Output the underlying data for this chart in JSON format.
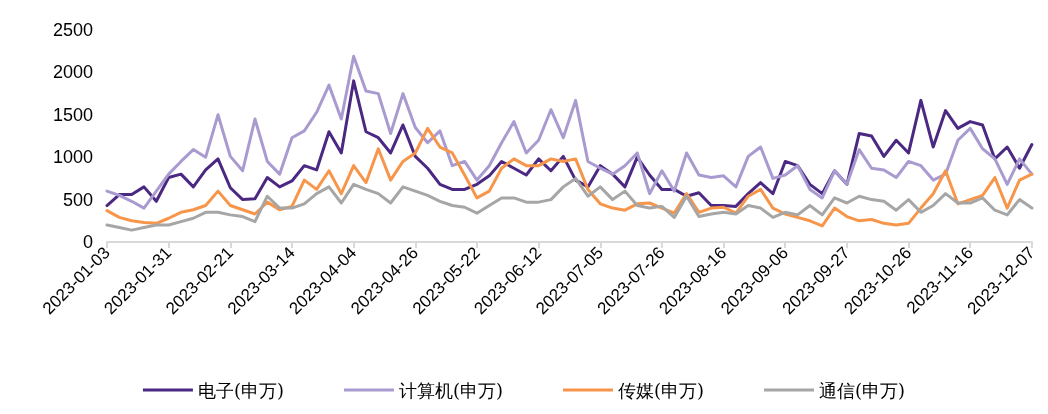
{
  "chart_data": {
    "type": "line",
    "categories": [
      "2023-01-03",
      null,
      null,
      null,
      null,
      "2023-01-31",
      null,
      null,
      null,
      null,
      "2023-02-21",
      null,
      null,
      null,
      null,
      "2023-03-14",
      null,
      null,
      null,
      null,
      "2023-04-04",
      null,
      null,
      null,
      null,
      "2023-04-26",
      null,
      null,
      null,
      null,
      "2023-05-22",
      null,
      null,
      null,
      null,
      "2023-06-12",
      null,
      null,
      null,
      null,
      "2023-07-05",
      null,
      null,
      null,
      null,
      "2023-07-26",
      null,
      null,
      null,
      null,
      "2023-08-16",
      null,
      null,
      null,
      null,
      "2023-09-06",
      null,
      null,
      null,
      null,
      "2023-09-27",
      null,
      null,
      null,
      null,
      "2023-10-26",
      null,
      null,
      null,
      null,
      "2023-11-16",
      null,
      null,
      null,
      null,
      "2023-12-07"
    ],
    "series": [
      {
        "name": "电子(申万)",
        "color": "#4b2882",
        "values": [
          430,
          560,
          560,
          650,
          480,
          760,
          800,
          650,
          850,
          980,
          640,
          500,
          510,
          760,
          650,
          720,
          900,
          850,
          1300,
          1050,
          1900,
          1300,
          1230,
          1050,
          1380,
          1010,
          870,
          680,
          620,
          620,
          680,
          780,
          950,
          870,
          790,
          980,
          840,
          1010,
          730,
          650,
          900,
          800,
          650,
          1000,
          790,
          620,
          620,
          540,
          580,
          430,
          430,
          420,
          570,
          700,
          570,
          950,
          900,
          680,
          570,
          840,
          680,
          1280,
          1250,
          1010,
          1200,
          1050,
          1670,
          1120,
          1550,
          1340,
          1420,
          1380,
          980,
          1120,
          870,
          1150
        ]
      },
      {
        "name": "计算机(申万)",
        "color": "#a99bd0",
        "values": [
          600,
          550,
          480,
          400,
          600,
          800,
          950,
          1090,
          1000,
          1500,
          1010,
          840,
          1450,
          950,
          800,
          1230,
          1310,
          1530,
          1850,
          1450,
          2190,
          1780,
          1750,
          1280,
          1750,
          1350,
          1170,
          1310,
          900,
          950,
          730,
          900,
          1170,
          1420,
          1050,
          1200,
          1560,
          1230,
          1670,
          950,
          870,
          800,
          900,
          1050,
          570,
          840,
          600,
          1050,
          790,
          760,
          780,
          650,
          1010,
          1120,
          750,
          790,
          900,
          620,
          520,
          840,
          680,
          1090,
          870,
          850,
          760,
          950,
          900,
          730,
          800,
          1200,
          1340,
          1100,
          980,
          680,
          980,
          800
        ]
      },
      {
        "name": "传媒(申万)",
        "color": "#f7964a",
        "values": [
          370,
          290,
          250,
          230,
          220,
          280,
          350,
          380,
          430,
          600,
          430,
          380,
          330,
          470,
          380,
          420,
          730,
          620,
          840,
          570,
          900,
          700,
          1100,
          730,
          950,
          1050,
          1340,
          1120,
          1050,
          790,
          520,
          600,
          870,
          980,
          900,
          900,
          980,
          950,
          980,
          620,
          450,
          400,
          375,
          450,
          460,
          400,
          340,
          570,
          350,
          400,
          410,
          340,
          540,
          620,
          400,
          330,
          290,
          250,
          190,
          400,
          300,
          250,
          265,
          220,
          200,
          220,
          400,
          570,
          840,
          450,
          500,
          550,
          760,
          400,
          730,
          800
        ]
      },
      {
        "name": "通信(申万)",
        "color": "#a6a6a6",
        "values": [
          200,
          170,
          140,
          170,
          200,
          200,
          240,
          280,
          350,
          350,
          320,
          300,
          240,
          540,
          400,
          400,
          450,
          570,
          650,
          460,
          680,
          620,
          570,
          460,
          650,
          600,
          550,
          480,
          430,
          410,
          340,
          430,
          520,
          520,
          470,
          470,
          500,
          650,
          750,
          540,
          650,
          500,
          600,
          430,
          400,
          420,
          290,
          540,
          300,
          330,
          350,
          330,
          430,
          400,
          290,
          350,
          320,
          430,
          320,
          520,
          460,
          540,
          500,
          480,
          375,
          500,
          350,
          430,
          570,
          460,
          460,
          520,
          375,
          320,
          500,
          400
        ]
      }
    ],
    "ylim": [
      0,
      2500
    ],
    "yticks": [
      0,
      500,
      1000,
      1500,
      2000,
      2500
    ],
    "grid": false,
    "legend": "bottom",
    "marker": "none",
    "line_style": "solid"
  }
}
